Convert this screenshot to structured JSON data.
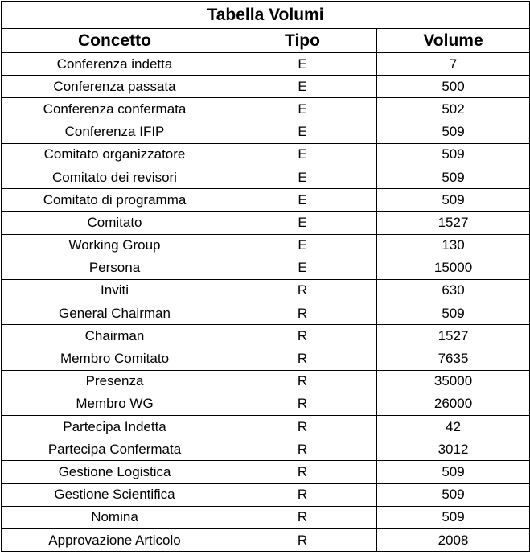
{
  "title": "Tabella Volumi",
  "headers": {
    "concept": "Concetto",
    "type": "Tipo",
    "volume": "Volume"
  },
  "rows": [
    {
      "concept": "Conferenza indetta",
      "type": "E",
      "volume": "7"
    },
    {
      "concept": "Conferenza passata",
      "type": "E",
      "volume": "500"
    },
    {
      "concept": "Conferenza confermata",
      "type": "E",
      "volume": "502"
    },
    {
      "concept": "Conferenza IFIP",
      "type": "E",
      "volume": "509"
    },
    {
      "concept": "Comitato organizzatore",
      "type": "E",
      "volume": "509"
    },
    {
      "concept": "Comitato dei revisori",
      "type": "E",
      "volume": "509"
    },
    {
      "concept": "Comitato di programma",
      "type": "E",
      "volume": "509"
    },
    {
      "concept": "Comitato",
      "type": "E",
      "volume": "1527"
    },
    {
      "concept": "Working Group",
      "type": "E",
      "volume": "130"
    },
    {
      "concept": "Persona",
      "type": "E",
      "volume": "15000"
    },
    {
      "concept": "Inviti",
      "type": "R",
      "volume": "630"
    },
    {
      "concept": "General Chairman",
      "type": "R",
      "volume": "509"
    },
    {
      "concept": "Chairman",
      "type": "R",
      "volume": "1527"
    },
    {
      "concept": "Membro Comitato",
      "type": "R",
      "volume": "7635"
    },
    {
      "concept": "Presenza",
      "type": "R",
      "volume": "35000"
    },
    {
      "concept": "Membro WG",
      "type": "R",
      "volume": "26000"
    },
    {
      "concept": "Partecipa Indetta",
      "type": "R",
      "volume": "42"
    },
    {
      "concept": "Partecipa Confermata",
      "type": "R",
      "volume": "3012"
    },
    {
      "concept": "Gestione Logistica",
      "type": "R",
      "volume": "509"
    },
    {
      "concept": "Gestione Scientifica",
      "type": "R",
      "volume": "509"
    },
    {
      "concept": "Nomina",
      "type": "R",
      "volume": "509"
    },
    {
      "concept": "Approvazione Articolo",
      "type": "R",
      "volume": "2008"
    }
  ]
}
